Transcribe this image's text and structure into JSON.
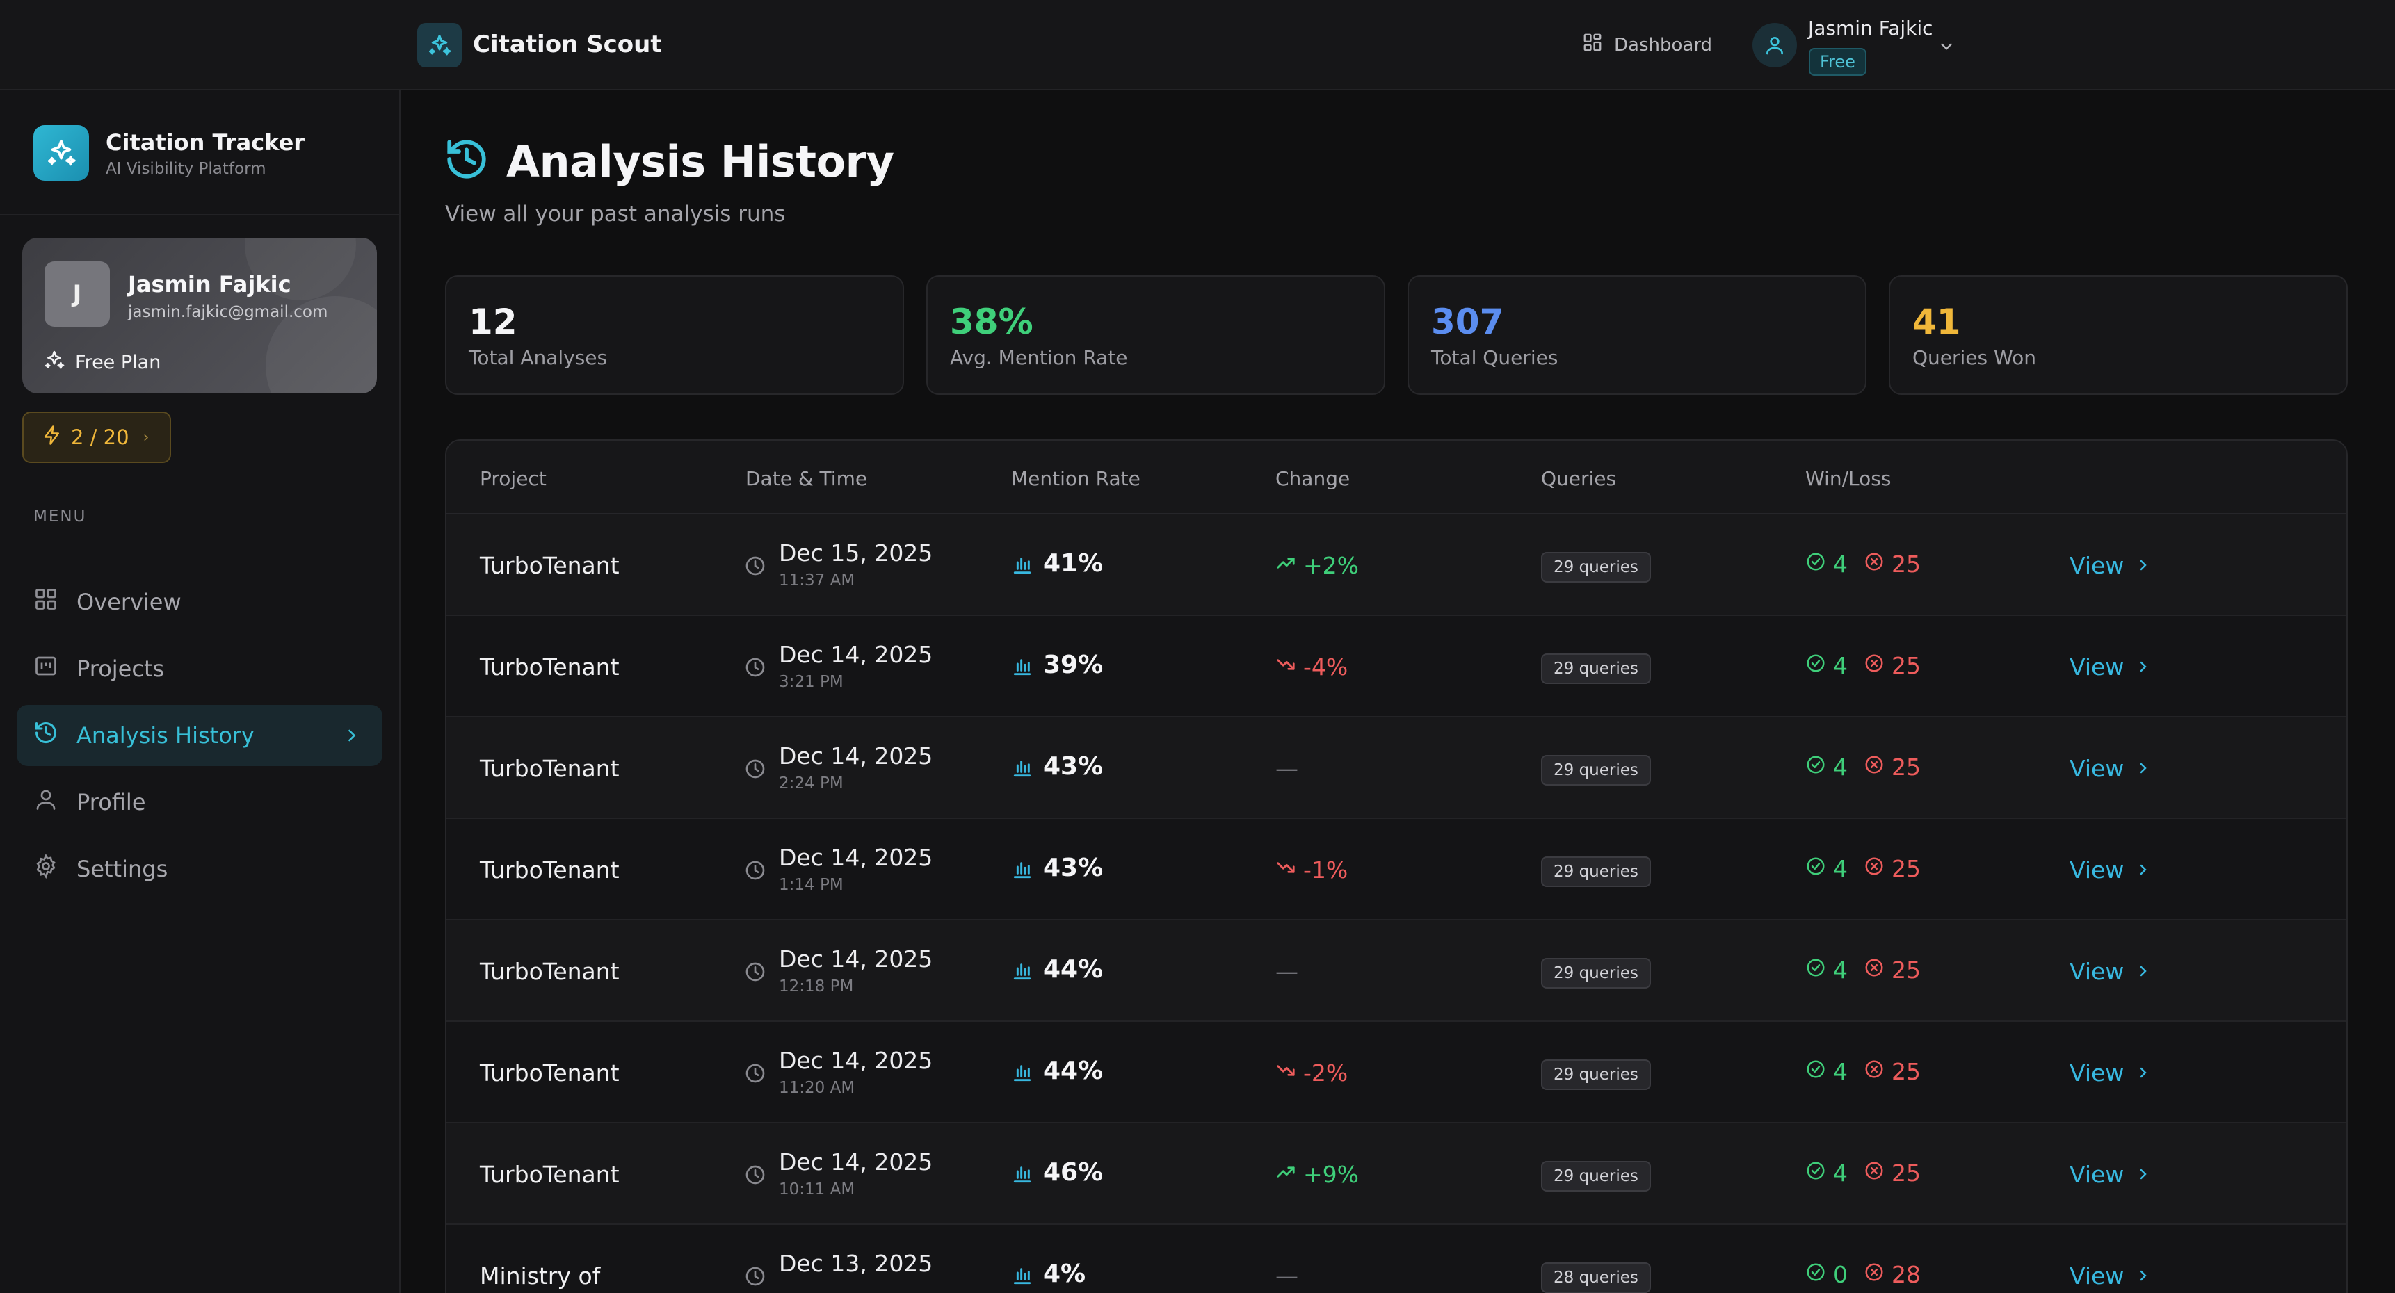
{
  "topbar": {
    "title": "Citation Scout",
    "dashboard_label": "Dashboard",
    "user_name": "Jasmin Fajkic",
    "plan_badge": "Free"
  },
  "sidebar": {
    "app_name": "Citation Tracker",
    "app_subtitle": "AI Visibility Platform",
    "user": {
      "initial": "J",
      "name": "Jasmin Fajkic",
      "email": "jasmin.fajkic@gmail.com",
      "plan": "Free Plan"
    },
    "credits": "2 / 20",
    "menu_label": "MENU",
    "items": [
      {
        "label": "Overview",
        "icon": "grid-icon"
      },
      {
        "label": "Projects",
        "icon": "projects-icon"
      },
      {
        "label": "Analysis History",
        "icon": "history-icon",
        "active": true
      },
      {
        "label": "Profile",
        "icon": "user-icon"
      },
      {
        "label": "Settings",
        "icon": "gear-icon"
      }
    ]
  },
  "header": {
    "title": "Analysis History",
    "subtitle": "View all your past analysis runs"
  },
  "stats": [
    {
      "value": "12",
      "label": "Total Analyses",
      "color": "#f5f5f7"
    },
    {
      "value": "38%",
      "label": "Avg. Mention Rate",
      "color": "#3fcf7a"
    },
    {
      "value": "307",
      "label": "Total Queries",
      "color": "#5b8def"
    },
    {
      "value": "41",
      "label": "Queries Won",
      "color": "#f0b73a"
    }
  ],
  "table": {
    "columns": [
      "Project",
      "Date & Time",
      "Mention Rate",
      "Change",
      "Queries",
      "Win/Loss"
    ],
    "view_label": "View",
    "rows": [
      {
        "project": "TurboTenant",
        "date": "Dec 15, 2025",
        "time": "11:37 AM",
        "rate": "41%",
        "change": "+2%",
        "trend": "up",
        "queries": "29 queries",
        "wins": "4",
        "losses": "25"
      },
      {
        "project": "TurboTenant",
        "date": "Dec 14, 2025",
        "time": "3:21 PM",
        "rate": "39%",
        "change": "-4%",
        "trend": "down",
        "queries": "29 queries",
        "wins": "4",
        "losses": "25"
      },
      {
        "project": "TurboTenant",
        "date": "Dec 14, 2025",
        "time": "2:24 PM",
        "rate": "43%",
        "change": "—",
        "trend": "none",
        "queries": "29 queries",
        "wins": "4",
        "losses": "25"
      },
      {
        "project": "TurboTenant",
        "date": "Dec 14, 2025",
        "time": "1:14 PM",
        "rate": "43%",
        "change": "-1%",
        "trend": "down",
        "queries": "29 queries",
        "wins": "4",
        "losses": "25"
      },
      {
        "project": "TurboTenant",
        "date": "Dec 14, 2025",
        "time": "12:18 PM",
        "rate": "44%",
        "change": "—",
        "trend": "none",
        "queries": "29 queries",
        "wins": "4",
        "losses": "25"
      },
      {
        "project": "TurboTenant",
        "date": "Dec 14, 2025",
        "time": "11:20 AM",
        "rate": "44%",
        "change": "-2%",
        "trend": "down",
        "queries": "29 queries",
        "wins": "4",
        "losses": "25"
      },
      {
        "project": "TurboTenant",
        "date": "Dec 14, 2025",
        "time": "10:11 AM",
        "rate": "46%",
        "change": "+9%",
        "trend": "up",
        "queries": "29 queries",
        "wins": "4",
        "losses": "25"
      },
      {
        "project": "Ministry of",
        "date": "Dec 13, 2025",
        "time": "",
        "rate": "4%",
        "change": "—",
        "trend": "none",
        "queries": "28 queries",
        "wins": "0",
        "losses": "28"
      }
    ]
  }
}
